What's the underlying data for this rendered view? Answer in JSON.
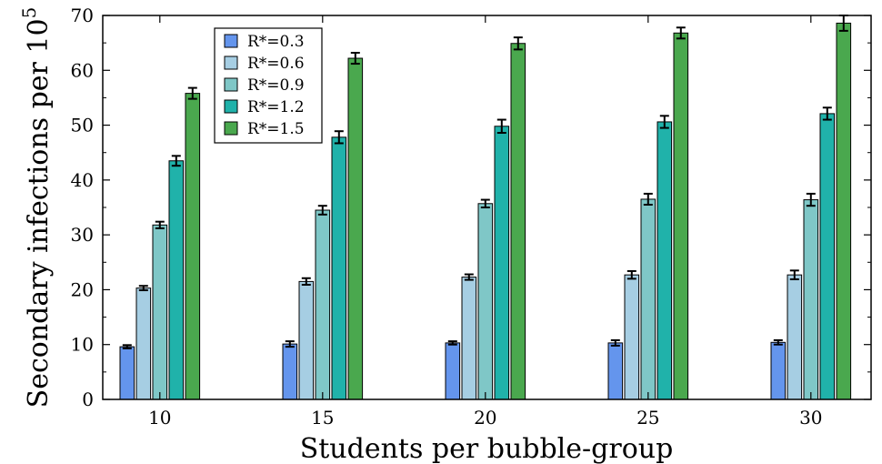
{
  "chart_data": {
    "type": "bar",
    "xlabel": "Students per bubble-group",
    "ylabel": "Secondary infections per 10",
    "ylabel_sup": "5",
    "ylim": [
      0,
      70
    ],
    "yticks": [
      0,
      10,
      20,
      30,
      40,
      50,
      60,
      70
    ],
    "categories": [
      "10",
      "15",
      "20",
      "25",
      "30"
    ],
    "legend_position": "top-left",
    "grid": false,
    "series": [
      {
        "name": "R*=0.3",
        "color": "#6495ed",
        "values": [
          9.6,
          10.1,
          10.3,
          10.3,
          10.4
        ],
        "errors": [
          0.3,
          0.5,
          0.3,
          0.5,
          0.4
        ]
      },
      {
        "name": "R*=0.6",
        "color": "#a6cee3",
        "values": [
          20.3,
          21.5,
          22.3,
          22.7,
          22.7
        ],
        "errors": [
          0.4,
          0.6,
          0.5,
          0.7,
          0.8
        ]
      },
      {
        "name": "R*=0.9",
        "color": "#7fc7c7",
        "values": [
          31.8,
          34.5,
          35.7,
          36.5,
          36.4
        ],
        "errors": [
          0.6,
          0.8,
          0.7,
          1.0,
          1.1
        ]
      },
      {
        "name": "R*=1.2",
        "color": "#20b2aa",
        "values": [
          43.5,
          47.8,
          49.8,
          50.6,
          52.1
        ],
        "errors": [
          0.9,
          1.1,
          1.2,
          1.1,
          1.1
        ]
      },
      {
        "name": "R*=1.5",
        "color": "#4aa84e",
        "values": [
          55.8,
          62.2,
          64.9,
          66.8,
          68.6
        ],
        "errors": [
          1.0,
          1.0,
          1.1,
          1.0,
          1.4
        ]
      }
    ]
  }
}
